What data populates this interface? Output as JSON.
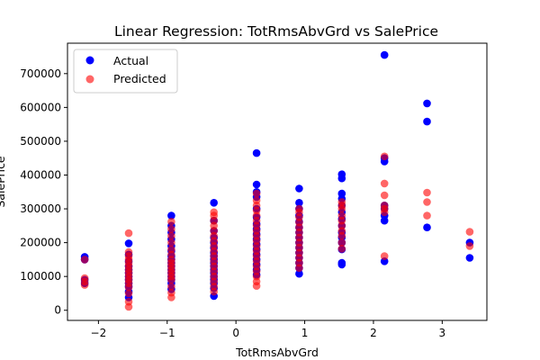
{
  "chart_data": {
    "type": "scatter",
    "title": "Linear Regression: TotRmsAbvGrd vs SalePrice",
    "xlabel": "TotRmsAbvGrd",
    "ylabel": "SalePrice",
    "xlim": [
      -2.45,
      3.65
    ],
    "ylim": [
      -30000,
      790000
    ],
    "xticks": [
      -2,
      -1,
      0,
      1,
      2,
      3
    ],
    "xtick_labels": [
      "−2",
      "−1",
      "0",
      "1",
      "2",
      "3"
    ],
    "yticks": [
      0,
      100000,
      200000,
      300000,
      400000,
      500000,
      600000,
      700000
    ],
    "ytick_labels": [
      "0",
      "100000",
      "200000",
      "300000",
      "400000",
      "500000",
      "600000",
      "700000"
    ],
    "grid": false,
    "legend_position": "top-left",
    "series": [
      {
        "name": "Actual",
        "color": "#0000ff",
        "alpha": 1.0,
        "points": [
          [
            -2.2,
            158000
          ],
          [
            -2.2,
            150000
          ],
          [
            -2.2,
            90000
          ],
          [
            -2.2,
            80000
          ],
          [
            -1.56,
            198000
          ],
          [
            -1.56,
            165000
          ],
          [
            -1.56,
            145000
          ],
          [
            -1.56,
            130000
          ],
          [
            -1.56,
            120000
          ],
          [
            -1.56,
            110000
          ],
          [
            -1.56,
            100000
          ],
          [
            -1.56,
            90000
          ],
          [
            -1.56,
            80000
          ],
          [
            -1.56,
            70000
          ],
          [
            -1.56,
            55000
          ],
          [
            -1.56,
            38000
          ],
          [
            -0.94,
            280000
          ],
          [
            -0.94,
            250000
          ],
          [
            -0.94,
            230000
          ],
          [
            -0.94,
            210000
          ],
          [
            -0.94,
            190000
          ],
          [
            -0.94,
            175000
          ],
          [
            -0.94,
            160000
          ],
          [
            -0.94,
            150000
          ],
          [
            -0.94,
            140000
          ],
          [
            -0.94,
            130000
          ],
          [
            -0.94,
            120000
          ],
          [
            -0.94,
            110000
          ],
          [
            -0.94,
            100000
          ],
          [
            -0.94,
            90000
          ],
          [
            -0.94,
            80000
          ],
          [
            -0.94,
            62000
          ],
          [
            -0.32,
            318000
          ],
          [
            -0.32,
            265000
          ],
          [
            -0.32,
            235000
          ],
          [
            -0.32,
            215000
          ],
          [
            -0.32,
            200000
          ],
          [
            -0.32,
            185000
          ],
          [
            -0.32,
            170000
          ],
          [
            -0.32,
            160000
          ],
          [
            -0.32,
            150000
          ],
          [
            -0.32,
            140000
          ],
          [
            -0.32,
            130000
          ],
          [
            -0.32,
            120000
          ],
          [
            -0.32,
            110000
          ],
          [
            -0.32,
            100000
          ],
          [
            -0.32,
            90000
          ],
          [
            -0.32,
            80000
          ],
          [
            -0.32,
            65000
          ],
          [
            -0.32,
            42000
          ],
          [
            0.3,
            465000
          ],
          [
            0.3,
            372000
          ],
          [
            0.3,
            350000
          ],
          [
            0.3,
            335000
          ],
          [
            0.3,
            300000
          ],
          [
            0.3,
            275000
          ],
          [
            0.3,
            255000
          ],
          [
            0.3,
            240000
          ],
          [
            0.3,
            225000
          ],
          [
            0.3,
            210000
          ],
          [
            0.3,
            195000
          ],
          [
            0.3,
            180000
          ],
          [
            0.3,
            165000
          ],
          [
            0.3,
            150000
          ],
          [
            0.3,
            135000
          ],
          [
            0.3,
            120000
          ],
          [
            0.3,
            105000
          ],
          [
            0.92,
            360000
          ],
          [
            0.92,
            318000
          ],
          [
            0.92,
            300000
          ],
          [
            0.92,
            280000
          ],
          [
            0.92,
            262000
          ],
          [
            0.92,
            245000
          ],
          [
            0.92,
            230000
          ],
          [
            0.92,
            215000
          ],
          [
            0.92,
            200000
          ],
          [
            0.92,
            185000
          ],
          [
            0.92,
            170000
          ],
          [
            0.92,
            155000
          ],
          [
            0.92,
            140000
          ],
          [
            0.92,
            125000
          ],
          [
            0.92,
            108000
          ],
          [
            1.54,
            402000
          ],
          [
            1.54,
            390000
          ],
          [
            1.54,
            345000
          ],
          [
            1.54,
            330000
          ],
          [
            1.54,
            310000
          ],
          [
            1.54,
            290000
          ],
          [
            1.54,
            270000
          ],
          [
            1.54,
            250000
          ],
          [
            1.54,
            230000
          ],
          [
            1.54,
            215000
          ],
          [
            1.54,
            200000
          ],
          [
            1.54,
            180000
          ],
          [
            1.54,
            140000
          ],
          [
            1.54,
            135000
          ],
          [
            2.16,
            755000
          ],
          [
            2.16,
            450000
          ],
          [
            2.16,
            440000
          ],
          [
            2.16,
            310000
          ],
          [
            2.16,
            300000
          ],
          [
            2.16,
            280000
          ],
          [
            2.16,
            265000
          ],
          [
            2.16,
            145000
          ],
          [
            2.78,
            612000
          ],
          [
            2.78,
            558000
          ],
          [
            2.78,
            245000
          ],
          [
            3.4,
            200000
          ],
          [
            3.4,
            155000
          ]
        ]
      },
      {
        "name": "Predicted",
        "color": "#ff0000",
        "alpha": 0.6,
        "points": [
          [
            -2.2,
            150000
          ],
          [
            -2.2,
            95000
          ],
          [
            -2.2,
            85000
          ],
          [
            -2.2,
            75000
          ],
          [
            -1.56,
            228000
          ],
          [
            -1.56,
            172000
          ],
          [
            -1.56,
            160000
          ],
          [
            -1.56,
            150000
          ],
          [
            -1.56,
            140000
          ],
          [
            -1.56,
            130000
          ],
          [
            -1.56,
            120000
          ],
          [
            -1.56,
            110000
          ],
          [
            -1.56,
            100000
          ],
          [
            -1.56,
            90000
          ],
          [
            -1.56,
            80000
          ],
          [
            -1.56,
            68000
          ],
          [
            -1.56,
            50000
          ],
          [
            -1.56,
            25000
          ],
          [
            -1.56,
            10000
          ],
          [
            -0.94,
            262000
          ],
          [
            -0.94,
            240000
          ],
          [
            -0.94,
            220000
          ],
          [
            -0.94,
            200000
          ],
          [
            -0.94,
            180000
          ],
          [
            -0.94,
            165000
          ],
          [
            -0.94,
            150000
          ],
          [
            -0.94,
            140000
          ],
          [
            -0.94,
            130000
          ],
          [
            -0.94,
            120000
          ],
          [
            -0.94,
            110000
          ],
          [
            -0.94,
            100000
          ],
          [
            -0.94,
            90000
          ],
          [
            -0.94,
            70000
          ],
          [
            -0.94,
            52000
          ],
          [
            -0.94,
            38000
          ],
          [
            -0.32,
            290000
          ],
          [
            -0.32,
            280000
          ],
          [
            -0.32,
            265000
          ],
          [
            -0.32,
            250000
          ],
          [
            -0.32,
            235000
          ],
          [
            -0.32,
            220000
          ],
          [
            -0.32,
            205000
          ],
          [
            -0.32,
            190000
          ],
          [
            -0.32,
            175000
          ],
          [
            -0.32,
            160000
          ],
          [
            -0.32,
            145000
          ],
          [
            -0.32,
            130000
          ],
          [
            -0.32,
            115000
          ],
          [
            -0.32,
            100000
          ],
          [
            -0.32,
            85000
          ],
          [
            -0.32,
            70000
          ],
          [
            -0.32,
            55000
          ],
          [
            0.3,
            345000
          ],
          [
            0.3,
            325000
          ],
          [
            0.3,
            310000
          ],
          [
            0.3,
            295000
          ],
          [
            0.3,
            280000
          ],
          [
            0.3,
            265000
          ],
          [
            0.3,
            250000
          ],
          [
            0.3,
            235000
          ],
          [
            0.3,
            220000
          ],
          [
            0.3,
            205000
          ],
          [
            0.3,
            190000
          ],
          [
            0.3,
            175000
          ],
          [
            0.3,
            160000
          ],
          [
            0.3,
            145000
          ],
          [
            0.3,
            130000
          ],
          [
            0.3,
            115000
          ],
          [
            0.3,
            100000
          ],
          [
            0.3,
            85000
          ],
          [
            0.3,
            72000
          ],
          [
            0.92,
            300000
          ],
          [
            0.92,
            290000
          ],
          [
            0.92,
            275000
          ],
          [
            0.92,
            260000
          ],
          [
            0.92,
            245000
          ],
          [
            0.92,
            230000
          ],
          [
            0.92,
            215000
          ],
          [
            0.92,
            200000
          ],
          [
            0.92,
            185000
          ],
          [
            0.92,
            170000
          ],
          [
            0.92,
            155000
          ],
          [
            0.92,
            140000
          ],
          [
            0.92,
            125000
          ],
          [
            1.54,
            320000
          ],
          [
            1.54,
            310000
          ],
          [
            1.54,
            300000
          ],
          [
            1.54,
            280000
          ],
          [
            1.54,
            265000
          ],
          [
            1.54,
            250000
          ],
          [
            1.54,
            235000
          ],
          [
            1.54,
            220000
          ],
          [
            1.54,
            200000
          ],
          [
            1.54,
            182000
          ],
          [
            2.16,
            455000
          ],
          [
            2.16,
            375000
          ],
          [
            2.16,
            340000
          ],
          [
            2.16,
            310000
          ],
          [
            2.16,
            300000
          ],
          [
            2.16,
            290000
          ],
          [
            2.16,
            160000
          ],
          [
            2.78,
            348000
          ],
          [
            2.78,
            320000
          ],
          [
            2.78,
            280000
          ],
          [
            3.4,
            232000
          ],
          [
            3.4,
            190000
          ]
        ]
      }
    ]
  }
}
